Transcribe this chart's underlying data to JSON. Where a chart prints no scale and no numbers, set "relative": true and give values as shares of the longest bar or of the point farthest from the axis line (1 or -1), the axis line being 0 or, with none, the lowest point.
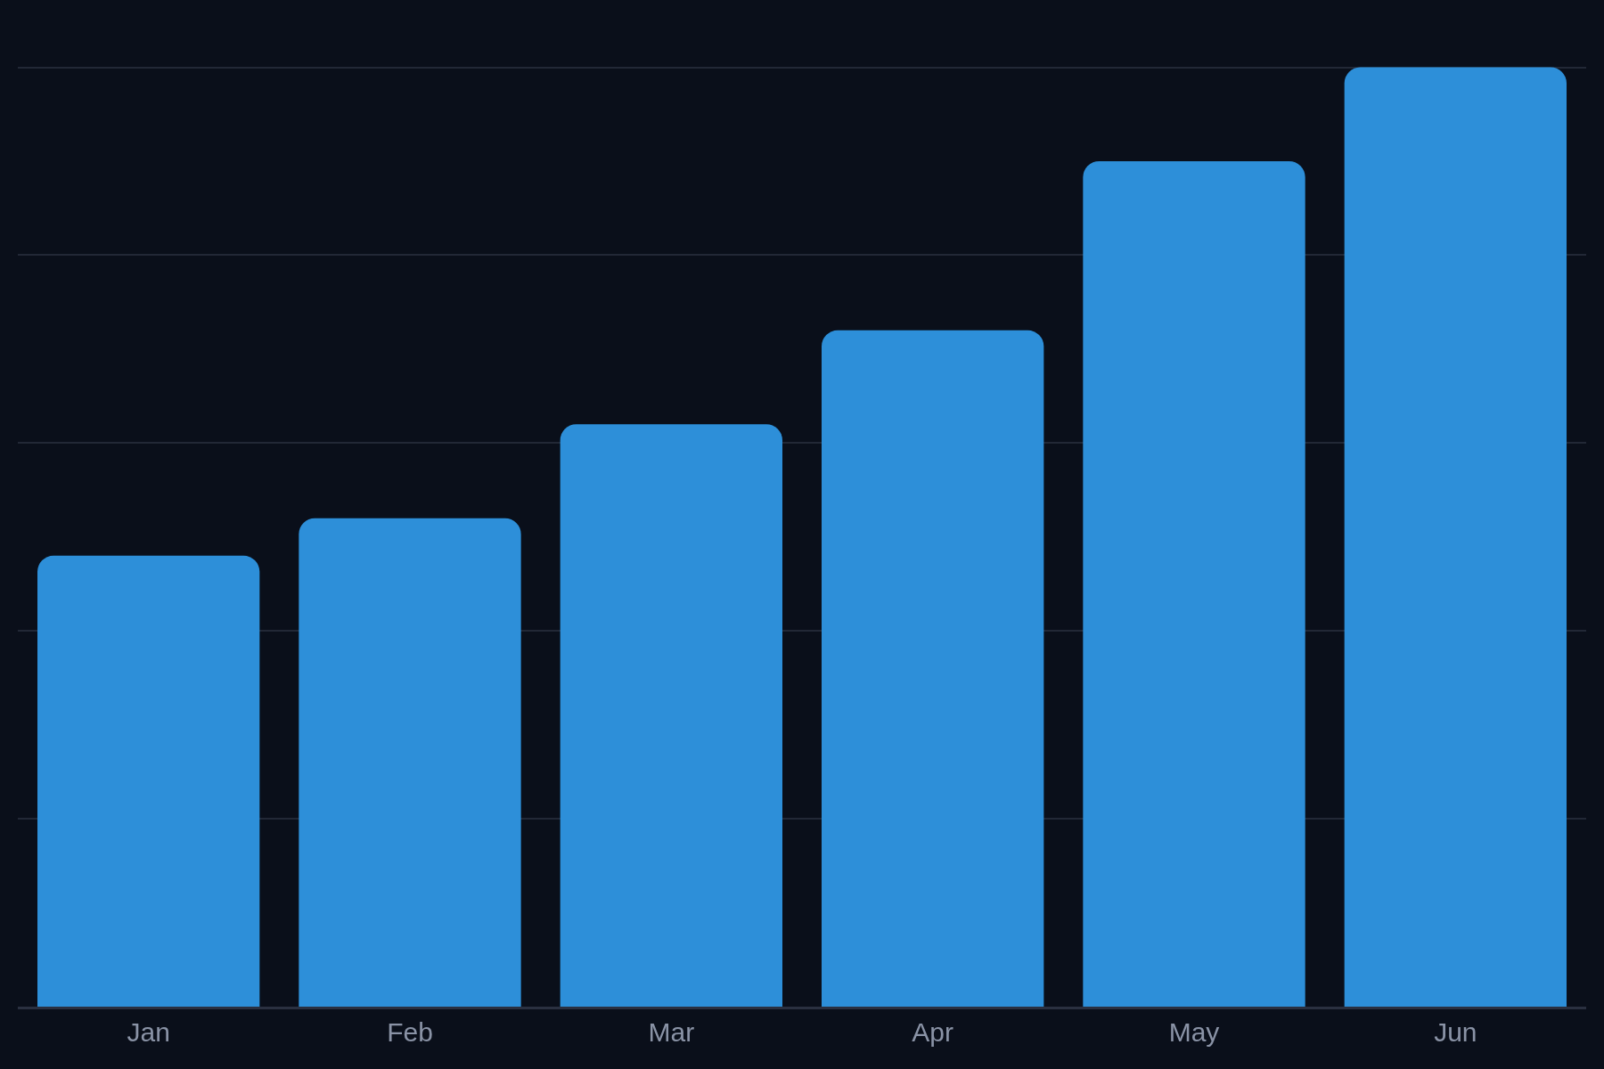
{
  "chart_data": {
    "type": "bar",
    "relative": true,
    "categories": [
      "Jan",
      "Feb",
      "Mar",
      "Apr",
      "May",
      "Jun"
    ],
    "values": [
      0.48,
      0.52,
      0.62,
      0.72,
      0.9,
      1
    ],
    "color": "#2d8fd9",
    "grid": "y"
  }
}
